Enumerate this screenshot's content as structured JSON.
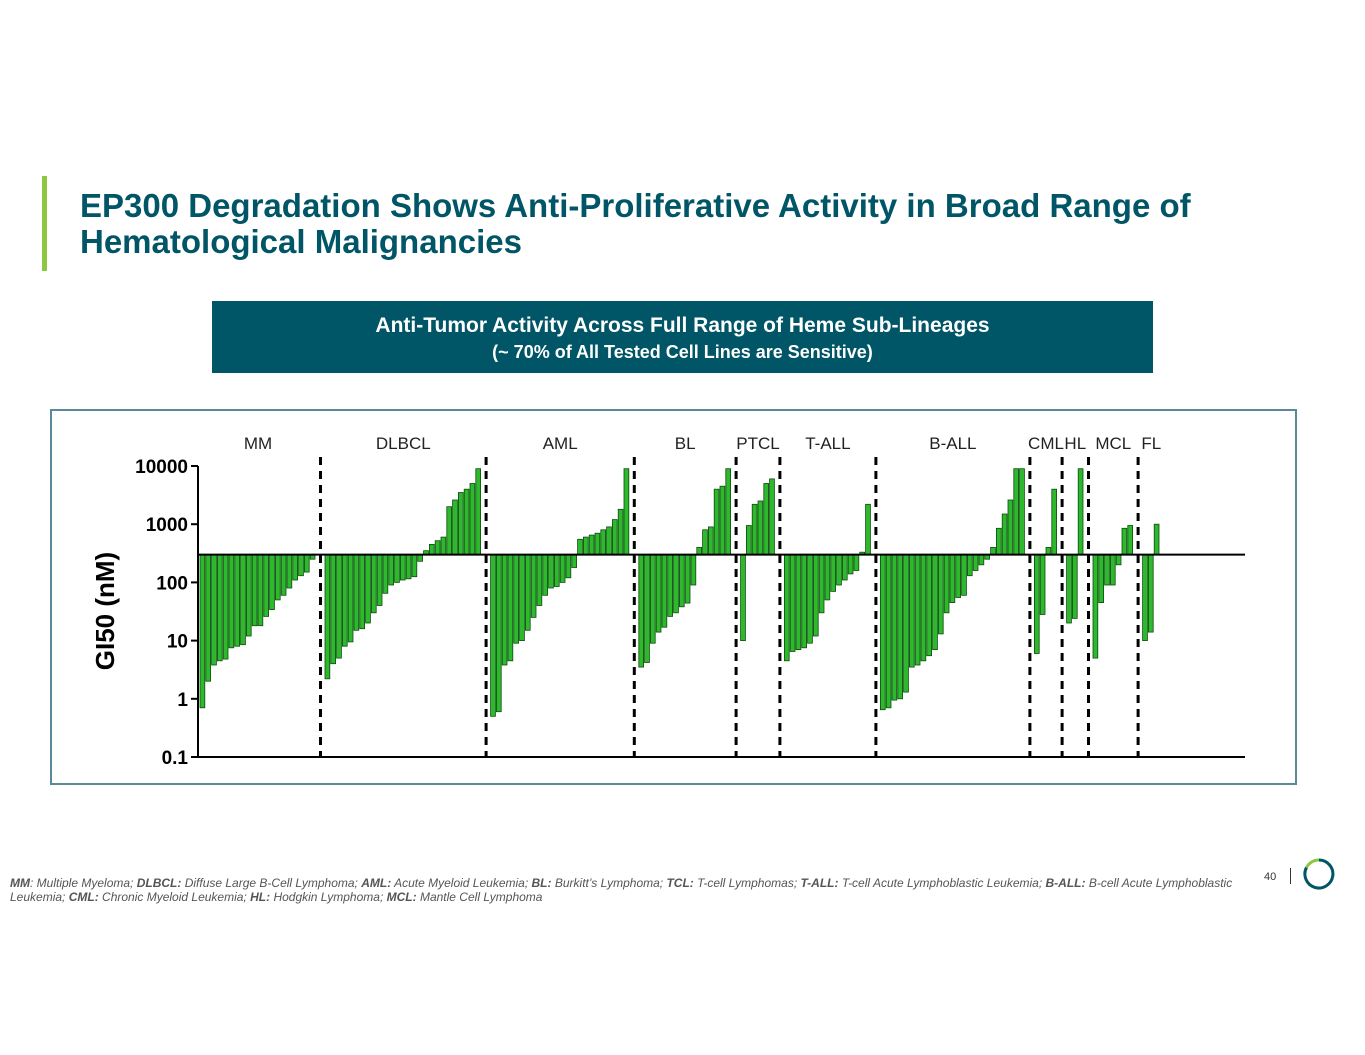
{
  "slide": {
    "title": "EP300 Degradation Shows Anti-Proliferative Activity in Broad Range of Hematological Malignancies",
    "banner_line1": "Anti-Tumor Activity Across Full Range of Heme Sub-Lineages",
    "banner_line2": "(~ 70% of All Tested Cell Lines are Sensitive)",
    "page_number": "40",
    "footnote": [
      {
        "abbr": "MM",
        "text": ": Multiple Myeloma; "
      },
      {
        "abbr": "DLBCL:",
        "text": " Diffuse Large B-Cell Lymphoma; "
      },
      {
        "abbr": "AML:",
        "text": " Acute Myeloid Leukemia; "
      },
      {
        "abbr": "BL:",
        "text": " Burkitt’s Lymphoma; "
      },
      {
        "abbr": "TCL:",
        "text": " T-cell Lymphomas; "
      },
      {
        "abbr": "T-ALL:",
        "text": " T-cell Acute Lymphoblastic Leukemia; "
      },
      {
        "abbr": "B-ALL:",
        "text": " B-cell Acute Lymphoblastic Leukemia; "
      },
      {
        "abbr": "CML:",
        "text": " Chronic Myeloid Leukemia; "
      },
      {
        "abbr": "HL:",
        "text": " Hodgkin Lymphoma; "
      },
      {
        "abbr": "MCL:",
        "text": " Mantle Cell Lymphoma"
      }
    ],
    "colors": {
      "accent": "#8dc63f",
      "brand": "#005566",
      "bar_fill": "#2eb82e",
      "bar_stroke": "#0d4d0d"
    }
  },
  "chart_data": {
    "type": "bar",
    "ylabel": "GI50 (nM)",
    "y_scale": "log",
    "ylim": [
      0.1,
      10000
    ],
    "yticks": [
      10000,
      1000,
      100,
      10,
      1,
      0.1
    ],
    "ytick_labels": [
      "10000",
      "1000",
      "100",
      "10",
      "1",
      "0.1"
    ],
    "baseline": 300,
    "grid": false,
    "groups": [
      {
        "label": "MM",
        "values": [
          0.7,
          2,
          3.8,
          4.5,
          4.8,
          7.5,
          8,
          8.5,
          12,
          18,
          18,
          26,
          34,
          50,
          60,
          80,
          110,
          130,
          150,
          250
        ]
      },
      {
        "label": "DLBCL",
        "values": [
          2.2,
          4,
          5,
          8,
          9.5,
          15,
          16,
          20,
          30,
          40,
          65,
          90,
          100,
          110,
          115,
          125,
          230,
          350,
          450,
          520,
          600,
          2000,
          2600,
          3500,
          4000,
          5000,
          9000
        ]
      },
      {
        "label": "AML",
        "values": [
          0.5,
          0.6,
          3.8,
          4.5,
          9,
          10,
          15,
          25,
          40,
          60,
          80,
          85,
          100,
          120,
          180,
          550,
          600,
          650,
          700,
          800,
          900,
          1200,
          1800,
          9000
        ]
      },
      {
        "label": "BL",
        "values": [
          3.5,
          4.2,
          9,
          14,
          17,
          26,
          30,
          38,
          44,
          90,
          400,
          800,
          900,
          4000,
          4500,
          9000
        ]
      },
      {
        "label": "PTCL",
        "values": [
          10,
          950,
          2200,
          2500,
          5000,
          6000
        ]
      },
      {
        "label": "T-ALL",
        "values": [
          4.5,
          6.5,
          7,
          7.5,
          9,
          12,
          30,
          50,
          70,
          90,
          110,
          140,
          160,
          330,
          2200
        ]
      },
      {
        "label": "B-ALL",
        "values": [
          0.65,
          0.7,
          0.95,
          1,
          1.3,
          3.5,
          3.8,
          4.5,
          5.5,
          7,
          13,
          30,
          45,
          55,
          60,
          130,
          160,
          200,
          250,
          400,
          850,
          1500,
          2600,
          9000,
          9000
        ]
      },
      {
        "label": "CML",
        "values": [
          6,
          28,
          400,
          4000
        ]
      },
      {
        "label": "HL",
        "values": [
          20,
          24,
          9000
        ]
      },
      {
        "label": "MCL",
        "values": [
          5,
          45,
          90,
          90,
          200,
          850,
          950
        ]
      },
      {
        "label": "FL",
        "values": [
          10,
          14,
          1000
        ]
      }
    ]
  }
}
